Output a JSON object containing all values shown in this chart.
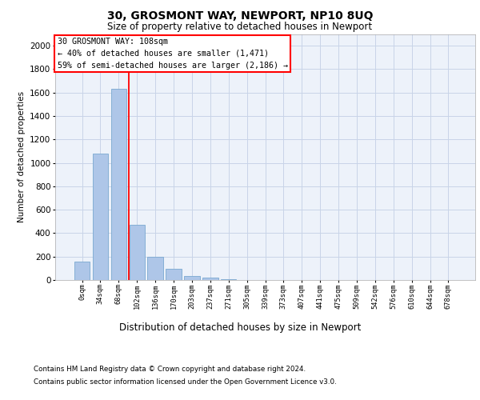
{
  "title1": "30, GROSMONT WAY, NEWPORT, NP10 8UQ",
  "title2": "Size of property relative to detached houses in Newport",
  "xlabel": "Distribution of detached houses by size in Newport",
  "ylabel": "Number of detached properties",
  "categories": [
    "0sqm",
    "34sqm",
    "68sqm",
    "102sqm",
    "136sqm",
    "170sqm",
    "203sqm",
    "237sqm",
    "271sqm",
    "305sqm",
    "339sqm",
    "373sqm",
    "407sqm",
    "441sqm",
    "475sqm",
    "509sqm",
    "542sqm",
    "576sqm",
    "610sqm",
    "644sqm",
    "678sqm"
  ],
  "values": [
    160,
    1080,
    1630,
    470,
    200,
    95,
    35,
    20,
    10,
    0,
    0,
    0,
    0,
    0,
    0,
    0,
    0,
    0,
    0,
    0,
    0
  ],
  "bar_color": "#aec6e8",
  "bar_edge_color": "#7aa8d0",
  "grid_color": "#c8d4e8",
  "vline_color": "red",
  "annotation_title": "30 GROSMONT WAY: 108sqm",
  "annotation_line1": "← 40% of detached houses are smaller (1,471)",
  "annotation_line2": "59% of semi-detached houses are larger (2,186) →",
  "annotation_box_color": "red",
  "footer1": "Contains HM Land Registry data © Crown copyright and database right 2024.",
  "footer2": "Contains public sector information licensed under the Open Government Licence v3.0.",
  "ylim": [
    0,
    2100
  ],
  "yticks": [
    0,
    200,
    400,
    600,
    800,
    1000,
    1200,
    1400,
    1600,
    1800,
    2000
  ],
  "background_color": "#edf2fa",
  "vline_position": 2.57
}
